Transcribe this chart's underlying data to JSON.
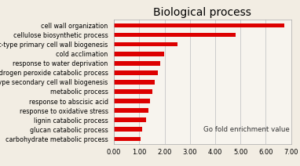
{
  "title": "Biological process",
  "categories": [
    "carbohydrate metabolic process",
    "glucan catabolic process",
    "lignin catabolic process",
    "response to oxidative stress",
    "response to abscisic acid",
    "metabolic process",
    "plant-type secondary cell wall biogenesis",
    "hydrogen peroxide catabolic process",
    "response to water deprivation",
    "cold acclimation",
    "plant-type primary cell wall biogenesis",
    "cellulose biosynthetic process",
    "cell wall organization"
  ],
  "values": [
    1.05,
    1.12,
    1.28,
    1.35,
    1.42,
    1.52,
    1.62,
    1.72,
    1.82,
    1.98,
    2.52,
    4.82,
    6.72
  ],
  "bar_color": "#dd0000",
  "xlim": [
    0,
    7.0
  ],
  "xticks": [
    0.0,
    1.0,
    2.0,
    3.0,
    4.0,
    5.0,
    6.0,
    7.0
  ],
  "xtick_labels": [
    "0.00",
    "1.00",
    "2.00",
    "3.00",
    "4.00",
    "5.00",
    "6.00",
    "7.00"
  ],
  "xlabel_annotation": "Go fold enrichment value",
  "title_fontsize": 10,
  "label_fontsize": 5.8,
  "tick_fontsize": 6.0,
  "annotation_fontsize": 6.2,
  "background_color": "#f2ede3",
  "plot_bg_color": "#f7f4ee",
  "border_color": "#aaaaaa"
}
